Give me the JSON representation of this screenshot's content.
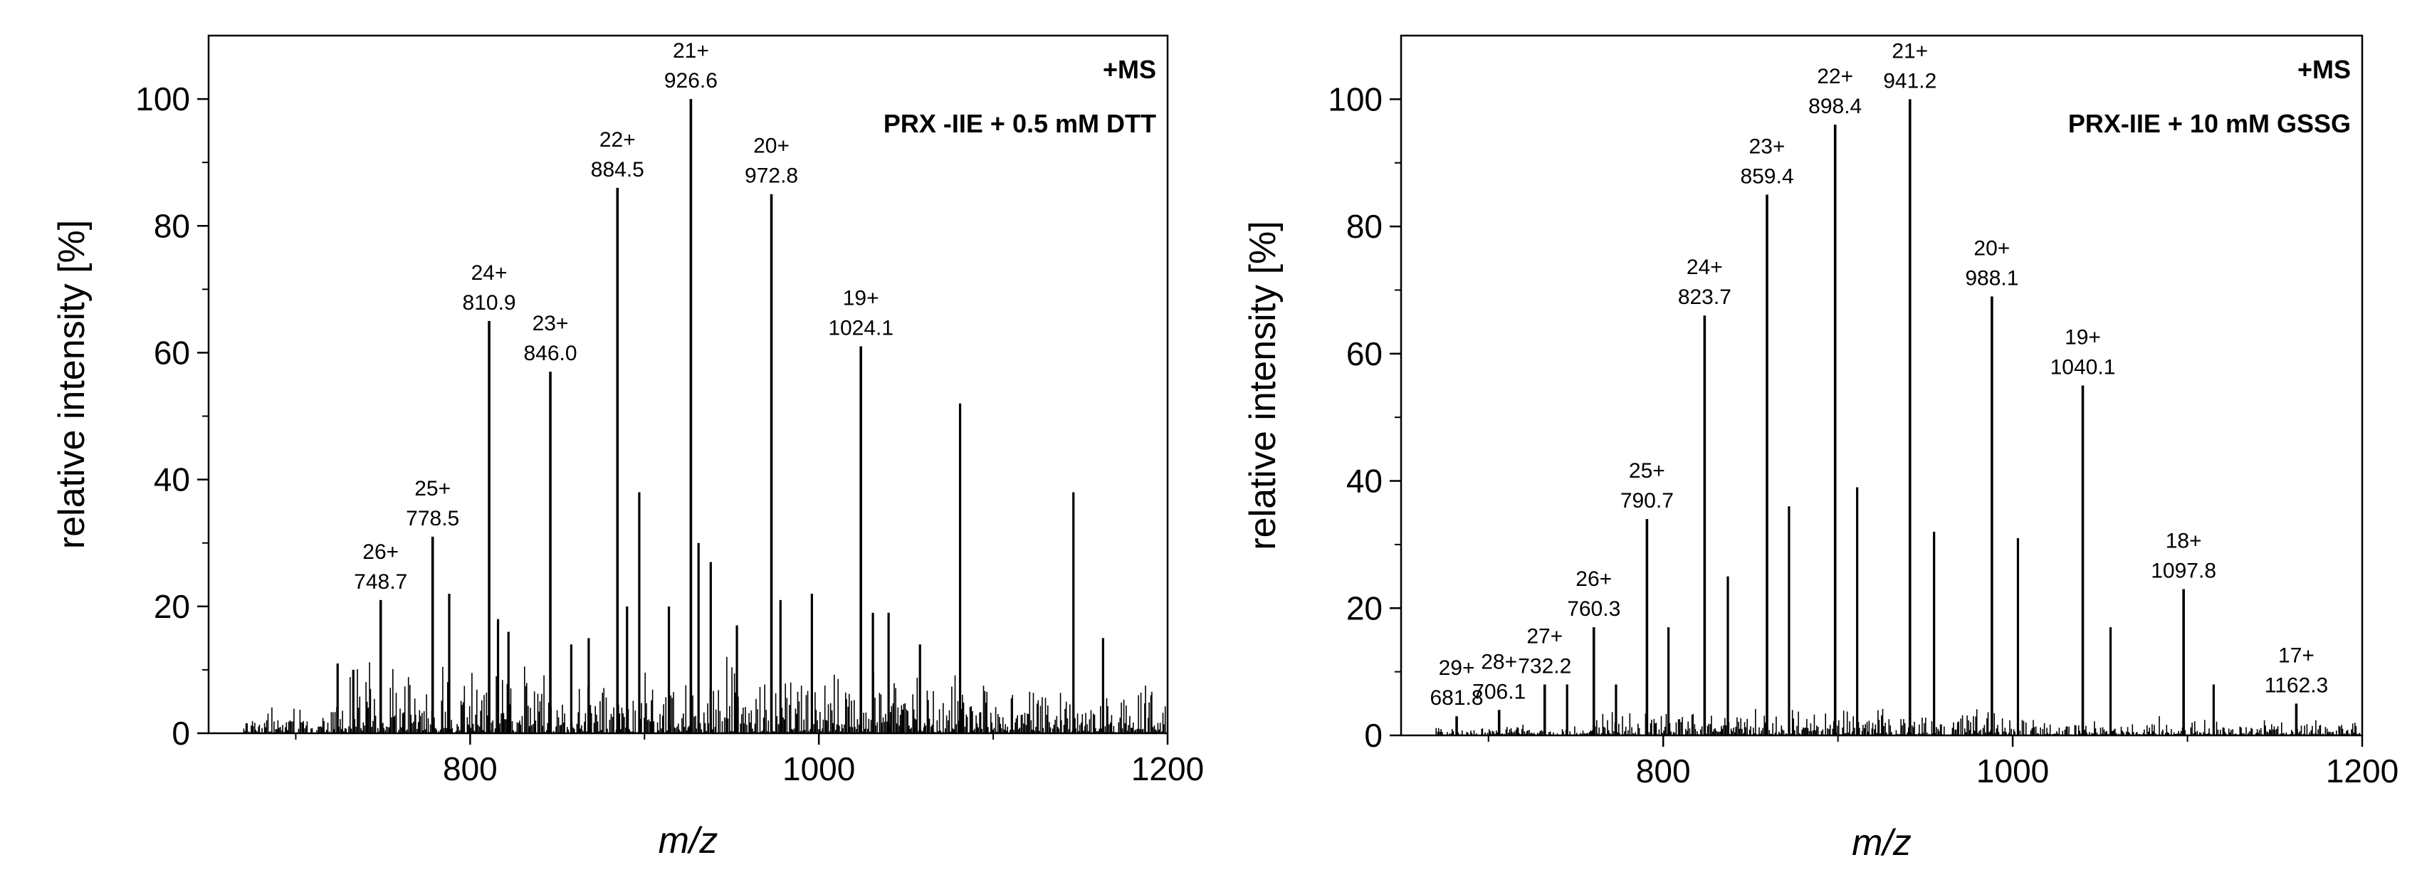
{
  "chart_data": [
    {
      "type": "line",
      "subtype": "mass-spectrum",
      "annotation_line1": "+MS",
      "annotation_line2": "PRX -IIE + 0.5 mM DTT",
      "xlabel": "m/z",
      "ylabel": "relative intensity [%]",
      "xlim": [
        650,
        1200
      ],
      "ylim": [
        0,
        110
      ],
      "xticks": [
        800,
        1000,
        1200
      ],
      "yticks": [
        0,
        20,
        40,
        60,
        80,
        100
      ],
      "grid": false,
      "labeled_peaks": [
        {
          "charge": "26+",
          "mz": "748.7",
          "x": 748.7,
          "y": 21
        },
        {
          "charge": "25+",
          "mz": "778.5",
          "x": 778.5,
          "y": 31
        },
        {
          "charge": "24+",
          "mz": "810.9",
          "x": 810.9,
          "y": 65
        },
        {
          "charge": "23+",
          "mz": "846.0",
          "x": 846.0,
          "y": 57
        },
        {
          "charge": "22+",
          "mz": "884.5",
          "x": 884.5,
          "y": 86
        },
        {
          "charge": "21+",
          "mz": "926.6",
          "x": 926.6,
          "y": 100
        },
        {
          "charge": "20+",
          "mz": "972.8",
          "x": 972.8,
          "y": 85
        },
        {
          "charge": "19+",
          "mz": "1024.1",
          "x": 1024.1,
          "y": 61
        }
      ],
      "other_peaks": [
        {
          "x": 724,
          "y": 11
        },
        {
          "x": 733,
          "y": 10
        },
        {
          "x": 788,
          "y": 22
        },
        {
          "x": 816,
          "y": 18
        },
        {
          "x": 822,
          "y": 16
        },
        {
          "x": 858,
          "y": 14
        },
        {
          "x": 868,
          "y": 15
        },
        {
          "x": 890,
          "y": 20
        },
        {
          "x": 897,
          "y": 38
        },
        {
          "x": 914,
          "y": 20
        },
        {
          "x": 931,
          "y": 30
        },
        {
          "x": 938,
          "y": 27
        },
        {
          "x": 953,
          "y": 17
        },
        {
          "x": 978,
          "y": 21
        },
        {
          "x": 996,
          "y": 22
        },
        {
          "x": 1031,
          "y": 19
        },
        {
          "x": 1040,
          "y": 19
        },
        {
          "x": 1058,
          "y": 14
        },
        {
          "x": 1081,
          "y": 52
        },
        {
          "x": 1146,
          "y": 38
        },
        {
          "x": 1163,
          "y": 15
        }
      ]
    },
    {
      "type": "line",
      "subtype": "mass-spectrum",
      "annotation_line1": "+MS",
      "annotation_line2": "PRX-IIE + 10 mM GSSG",
      "xlabel": "m/z",
      "ylabel": "relative intensity [%]",
      "xlim": [
        650,
        1200
      ],
      "ylim": [
        0,
        110
      ],
      "xticks": [
        800,
        1000,
        1200
      ],
      "yticks": [
        0,
        20,
        40,
        60,
        80,
        100
      ],
      "grid": false,
      "labeled_peaks": [
        {
          "charge": "29+",
          "mz": "681.8",
          "x": 681.8,
          "y": 3
        },
        {
          "charge": "28+",
          "mz": "706.1",
          "x": 706.1,
          "y": 4
        },
        {
          "charge": "27+",
          "mz": "732.2",
          "x": 732.2,
          "y": 8
        },
        {
          "charge": "26+",
          "mz": "760.3",
          "x": 760.3,
          "y": 17
        },
        {
          "charge": "25+",
          "mz": "790.7",
          "x": 790.7,
          "y": 34
        },
        {
          "charge": "24+",
          "mz": "823.7",
          "x": 823.7,
          "y": 66
        },
        {
          "charge": "23+",
          "mz": "859.4",
          "x": 859.4,
          "y": 85
        },
        {
          "charge": "22+",
          "mz": "898.4",
          "x": 898.4,
          "y": 96
        },
        {
          "charge": "21+",
          "mz": "941.2",
          "x": 941.2,
          "y": 100
        },
        {
          "charge": "20+",
          "mz": "988.1",
          "x": 988.1,
          "y": 69
        },
        {
          "charge": "19+",
          "mz": "1040.1",
          "x": 1040.1,
          "y": 55
        },
        {
          "charge": "18+",
          "mz": "1097.8",
          "x": 1097.8,
          "y": 23
        },
        {
          "charge": "17+",
          "mz": "1162.3",
          "x": 1162.3,
          "y": 5
        }
      ],
      "other_peaks": [
        {
          "x": 745,
          "y": 8
        },
        {
          "x": 773,
          "y": 8
        },
        {
          "x": 803,
          "y": 17
        },
        {
          "x": 837,
          "y": 25
        },
        {
          "x": 872,
          "y": 36
        },
        {
          "x": 911,
          "y": 39
        },
        {
          "x": 955,
          "y": 32
        },
        {
          "x": 1003,
          "y": 31
        },
        {
          "x": 1056,
          "y": 17
        },
        {
          "x": 1115,
          "y": 8
        }
      ]
    }
  ]
}
